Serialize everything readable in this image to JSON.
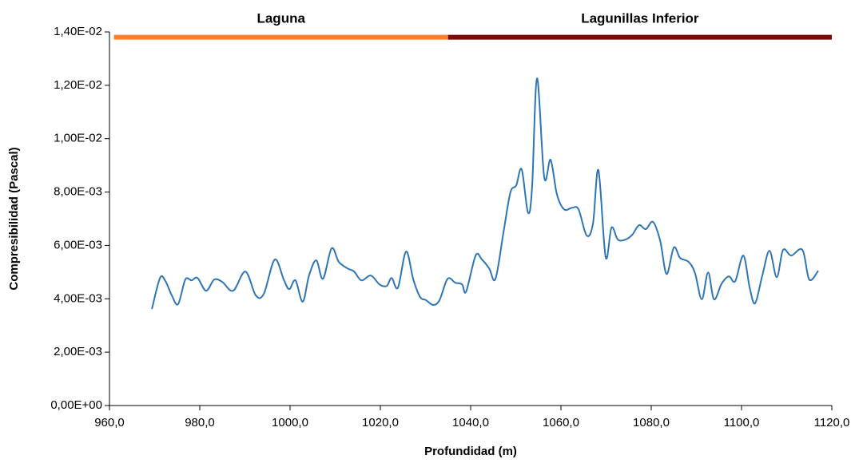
{
  "chart_data": {
    "type": "line",
    "xlabel": "Profundidad (m)",
    "ylabel": "Compresibilidad (Pascal)",
    "xlim": [
      960,
      1120
    ],
    "xticks": [
      {
        "value": 960,
        "label": "960,0"
      },
      {
        "value": 980,
        "label": "980,0"
      },
      {
        "value": 1000,
        "label": "1000,0"
      },
      {
        "value": 1020,
        "label": "1020,0"
      },
      {
        "value": 1040,
        "label": "1040,0"
      },
      {
        "value": 1060,
        "label": "1060,0"
      },
      {
        "value": 1080,
        "label": "1080,0"
      },
      {
        "value": 1100,
        "label": "1100,0"
      },
      {
        "value": 1120,
        "label": "1120,0"
      }
    ],
    "ylim": [
      0,
      0.014
    ],
    "yticks": [
      {
        "value": 0,
        "label": "0,00E+00"
      },
      {
        "value": 0.002,
        "label": "2,00E-03"
      },
      {
        "value": 0.004,
        "label": "4,00E-03"
      },
      {
        "value": 0.006,
        "label": "6,00E-03"
      },
      {
        "value": 0.008,
        "label": "8,00E-03"
      },
      {
        "value": 0.01,
        "label": "1,00E-02"
      },
      {
        "value": 0.012,
        "label": "1,20E-02"
      },
      {
        "value": 0.014,
        "label": "1,40E-02"
      }
    ],
    "zones": [
      {
        "name": "Laguna",
        "color": "#ff7f27",
        "x": [
          961,
          1035
        ],
        "y": 0.0138
      },
      {
        "name": "Lagunillas Inferior",
        "color": "#7b0a0a",
        "x": [
          1035,
          1120
        ],
        "y": 0.0138
      }
    ],
    "series": [
      {
        "color": "#2e75b6",
        "x": [
          969.4,
          971.2,
          972.4,
          973.8,
          975.2,
          976.8,
          978.2,
          979.5,
          981.4,
          983.2,
          985.0,
          987.4,
          990.1,
          992.4,
          994.2,
          996.6,
          998.6,
          999.8,
          1001.2,
          1002.8,
          1004.2,
          1005.8,
          1007.3,
          1009.2,
          1010.8,
          1012.7,
          1014.2,
          1015.8,
          1017.9,
          1019.8,
          1021.4,
          1022.5,
          1023.9,
          1025.7,
          1027.3,
          1028.8,
          1030.1,
          1031.7,
          1033.1,
          1034.9,
          1036.6,
          1038.1,
          1039.0,
          1041.1,
          1042.5,
          1044.1,
          1045.5,
          1047.3,
          1048.8,
          1050.1,
          1051.3,
          1052.7,
          1053.6,
          1054.7,
          1056.3,
          1057.7,
          1059.1,
          1060.7,
          1062.5,
          1063.9,
          1065.7,
          1067.1,
          1068.3,
          1069.9,
          1071.2,
          1072.6,
          1074.3,
          1075.8,
          1077.3,
          1078.8,
          1080.4,
          1082.0,
          1083.4,
          1085.0,
          1086.4,
          1088.3,
          1089.7,
          1091.2,
          1092.6,
          1093.9,
          1095.6,
          1097.2,
          1098.6,
          1100.4,
          1101.8,
          1103.0,
          1104.6,
          1106.2,
          1107.8,
          1109.2,
          1111.0,
          1113.5,
          1115.0,
          1117.0
        ],
        "values": [
          0.00362,
          0.00478,
          0.00466,
          0.00413,
          0.0038,
          0.00472,
          0.00469,
          0.00478,
          0.0043,
          0.00472,
          0.00463,
          0.0043,
          0.00502,
          0.00413,
          0.00419,
          0.00547,
          0.00472,
          0.00436,
          0.00469,
          0.00389,
          0.00487,
          0.00544,
          0.00475,
          0.00589,
          0.00538,
          0.00514,
          0.00502,
          0.00469,
          0.00487,
          0.00454,
          0.00448,
          0.00478,
          0.00442,
          0.00577,
          0.00472,
          0.00407,
          0.00395,
          0.00377,
          0.00395,
          0.00475,
          0.0046,
          0.00454,
          0.00427,
          0.00562,
          0.00547,
          0.00514,
          0.00475,
          0.00652,
          0.00798,
          0.00825,
          0.00885,
          0.00723,
          0.00816,
          0.01226,
          0.00855,
          0.00921,
          0.00792,
          0.00735,
          0.00741,
          0.00735,
          0.00637,
          0.00682,
          0.00882,
          0.00556,
          0.00667,
          0.00622,
          0.00622,
          0.0064,
          0.00676,
          0.00661,
          0.00688,
          0.00616,
          0.00493,
          0.00592,
          0.00553,
          0.00538,
          0.00496,
          0.00398,
          0.00499,
          0.00398,
          0.00457,
          0.00484,
          0.00466,
          0.00562,
          0.00442,
          0.00383,
          0.00487,
          0.0058,
          0.00481,
          0.00583,
          0.00562,
          0.00583,
          0.00472,
          0.00505
        ]
      }
    ]
  }
}
